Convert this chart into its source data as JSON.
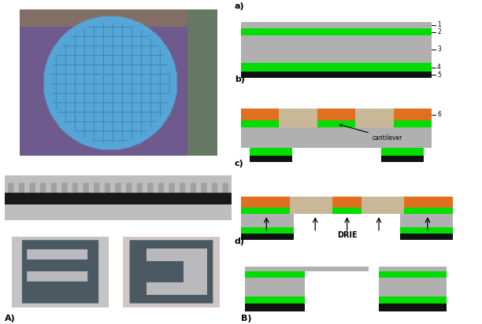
{
  "fig_width": 6.12,
  "fig_height": 4.12,
  "dpi": 100,
  "bg_color": "#ffffff",
  "label_A": "A)",
  "label_B": "B)",
  "panel_labels": [
    "a)",
    "b)",
    "c)",
    "d)"
  ],
  "layer_numbers_a": [
    "1",
    "2",
    "3",
    "4",
    "5"
  ],
  "layer_number_b": "6",
  "drie_text": "DRIE",
  "cantilever_text": "cantilever",
  "colors": {
    "gray": "#b0b0b0",
    "green": "#00dd00",
    "black": "#111111",
    "orange": "#e07020",
    "white": "#ffffff",
    "light_gray": "#c8c8c8",
    "dark_gray": "#606060",
    "tan": "#c8b898"
  }
}
